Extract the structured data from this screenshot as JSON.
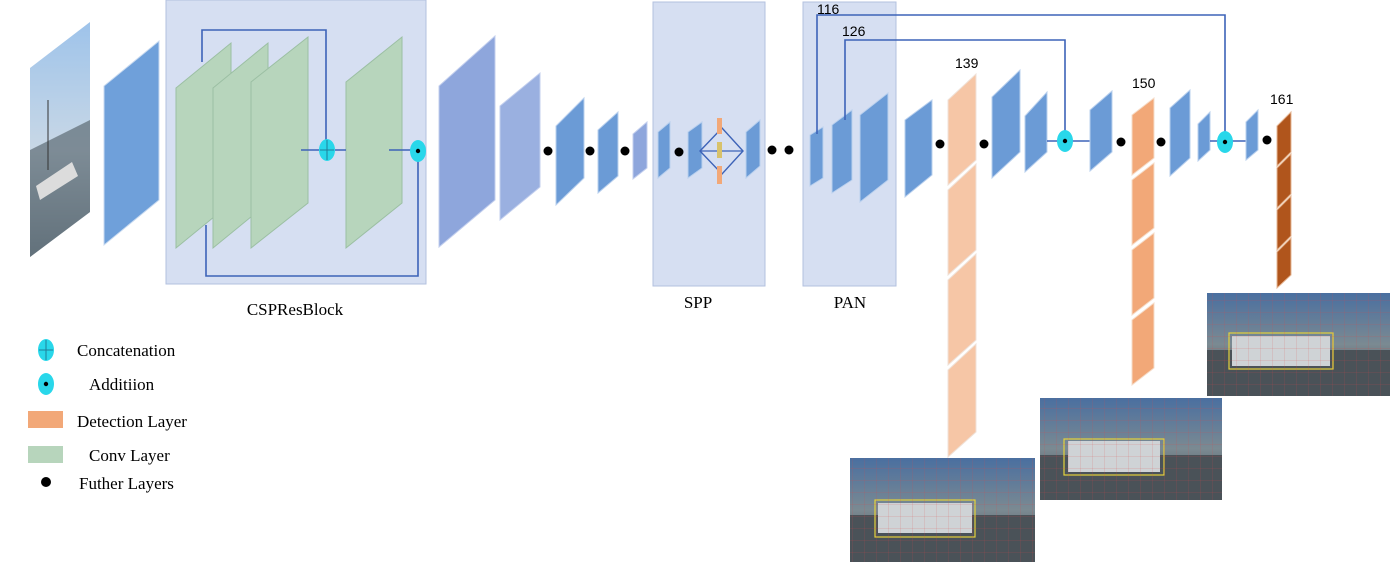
{
  "blocks": {
    "csp": "CSPResBlock",
    "spp": "SPP",
    "pan": "PAN"
  },
  "layer_numbers": {
    "l116": "116",
    "l126": "126",
    "l139": "139",
    "l150": "150",
    "l161": "161"
  },
  "legend": {
    "concatenation": "Concatenation",
    "addition": "Additiion",
    "detection": "Detection Layer",
    "conv": "Conv Layer",
    "further": "Futher Layers"
  },
  "colors": {
    "block_bg": "#d6dff2",
    "block_border": "#b3c1df",
    "layer_blue": "#6b9bd6",
    "layer_periwinkle": "#8ea6dc",
    "conv_green": "#b7d5bc",
    "detect_light": "#f6c6a6",
    "detect_mid": "#f2a878",
    "detect_dark": "#b0551c",
    "op_cyan": "#29d7ea",
    "line_blue": "#3d63b8"
  },
  "icons": {
    "input_image": "street-scene-photo",
    "output_images": "detection-result-photo"
  }
}
